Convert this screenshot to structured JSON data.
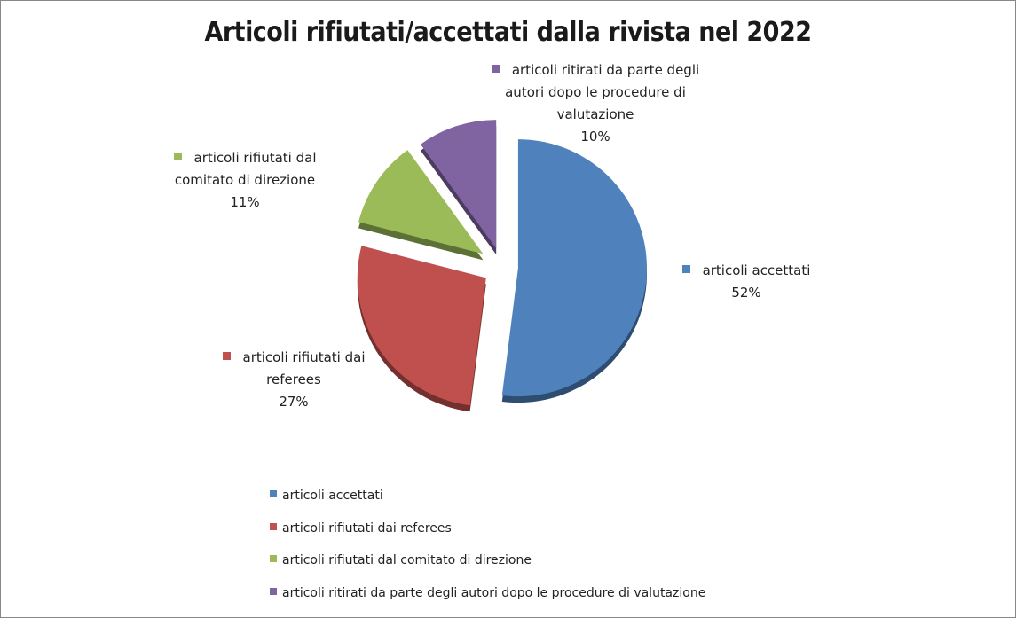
{
  "chart_data": {
    "type": "pie",
    "title": "Articoli rifiutati/accettati dalla rivista nel 2022",
    "categories": [
      "articoli accettati",
      "articoli rifiutati dai referees",
      "articoli rifiutati dal comitato di direzione",
      "articoli ritirati da parte degli autori dopo le procedure di valutazione"
    ],
    "values": [
      52,
      27,
      11,
      10
    ],
    "value_labels": [
      "52%",
      "27%",
      "11%",
      "10%"
    ],
    "colors": [
      "#4f81bd",
      "#c0504d",
      "#9bbb59",
      "#8064a2"
    ],
    "legend": "bottom"
  }
}
